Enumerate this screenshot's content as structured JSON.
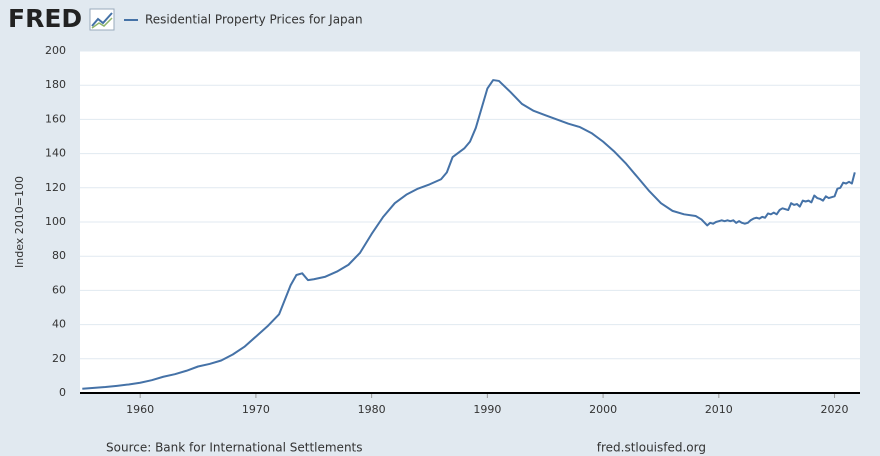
{
  "chart_data": {
    "type": "line",
    "logo": "FRED",
    "y_label": "Index 2010=100",
    "source": "Source: Bank for International Settlements",
    "website": "fred.stlouisfed.org",
    "x": [
      1955,
      1956,
      1957,
      1958,
      1959,
      1960,
      1961,
      1962,
      1963,
      1964,
      1965,
      1966,
      1967,
      1968,
      1969,
      1970,
      1971,
      1972,
      1973,
      1973.5,
      1974,
      1974.5,
      1975,
      1976,
      1977,
      1978,
      1979,
      1980,
      1981,
      1982,
      1983,
      1984,
      1985,
      1986,
      1986.5,
      1987,
      1988,
      1988.5,
      1989,
      1990,
      1990.5,
      1991,
      1992,
      1993,
      1994,
      1995,
      1996,
      1997,
      1998,
      1999,
      2000,
      2001,
      2002,
      2003,
      2004,
      2005,
      2006,
      2007,
      2008,
      2008.5,
      2009,
      2009.25,
      2009.5,
      2009.75,
      2010,
      2010.25,
      2010.5,
      2010.75,
      2011,
      2011.25,
      2011.5,
      2011.75,
      2012,
      2012.25,
      2012.5,
      2012.75,
      2013,
      2013.25,
      2013.5,
      2013.75,
      2014,
      2014.25,
      2014.5,
      2014.75,
      2015,
      2015.25,
      2015.5,
      2015.75,
      2016,
      2016.25,
      2016.5,
      2016.75,
      2017,
      2017.25,
      2017.5,
      2017.75,
      2018,
      2018.25,
      2018.5,
      2018.75,
      2019,
      2019.25,
      2019.5,
      2019.75,
      2020,
      2020.25,
      2020.5,
      2020.75,
      2021,
      2021.25,
      2021.5,
      2021.75
    ],
    "series": [
      {
        "name": "Residential Property Prices for Japan",
        "color": "#4572a7",
        "values": [
          2.5,
          3,
          3.5,
          4.2,
          5,
          6,
          7.5,
          9.5,
          11,
          13,
          15.5,
          17,
          19,
          22.5,
          27,
          33,
          39,
          46,
          63,
          69,
          70,
          66,
          66.5,
          68,
          71,
          75,
          82,
          93,
          103,
          111,
          116,
          119.5,
          122,
          125,
          129,
          138,
          143,
          147,
          155,
          178,
          183,
          182.5,
          176,
          169,
          165,
          162.5,
          160,
          157.5,
          155.5,
          152,
          147,
          141,
          134,
          126,
          118,
          111,
          106.5,
          104.5,
          103.5,
          101.5,
          98,
          99.5,
          99,
          100,
          100.5,
          101,
          100.5,
          101,
          100.5,
          101,
          99.5,
          100.5,
          99.5,
          99,
          99.5,
          101,
          102,
          102.5,
          102,
          103,
          102.5,
          105,
          104.5,
          105.5,
          104.5,
          107,
          108,
          107.5,
          107,
          111,
          110,
          110.5,
          109,
          112.5,
          112,
          112.5,
          111.5,
          115.5,
          114,
          113.5,
          112.5,
          115,
          114,
          114.5,
          115,
          119.5,
          120,
          123,
          122.5,
          123.5,
          122.5,
          129
        ]
      }
    ],
    "xlim": [
      1954.8,
      2022.2
    ],
    "xticks": [
      1960,
      1970,
      1980,
      1990,
      2000,
      2010,
      2020
    ],
    "ylim": [
      0,
      200
    ],
    "yticks": [
      0,
      20,
      40,
      60,
      80,
      100,
      120,
      140,
      160,
      180,
      200
    ],
    "grid": true
  }
}
